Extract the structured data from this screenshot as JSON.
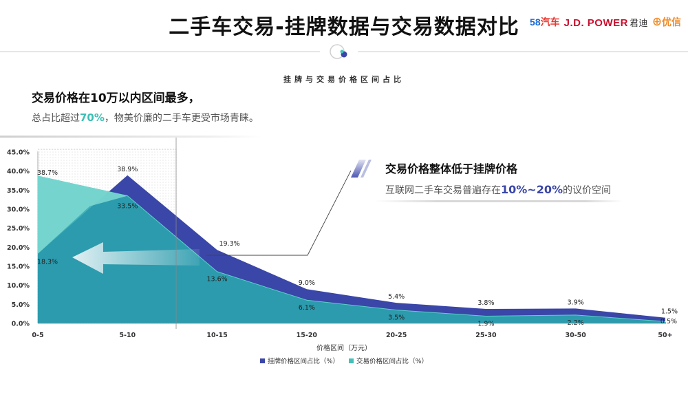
{
  "header": {
    "title": "二手车交易-挂牌数据与交易数据对比",
    "logos": {
      "logo_58": "58",
      "logo_58_text": "汽车",
      "logo_jd": "J.D. POWER",
      "logo_jd_text": "君迪",
      "logo_yx": "优信"
    }
  },
  "subtitle": "挂牌与交易价格区间占比",
  "callout_left": {
    "head": "交易价格在10万以内区间最多，",
    "body_prefix": "总占比超过",
    "body_highlight": "70%",
    "body_suffix": "，物美价廉的二手车更受市场青睐。"
  },
  "callout_right": {
    "head": "交易价格整体低于挂牌价格",
    "body_prefix": "互联网二手车交易普遍存在",
    "body_highlight": "10%~20%",
    "body_suffix": "的议价空间"
  },
  "colors": {
    "listing": "#3a46a8",
    "transaction": "#46bfba",
    "transaction_fill": "#2aa3a8"
  },
  "chart_data": {
    "type": "area",
    "categories": [
      "0-5",
      "5-10",
      "10-15",
      "15-20",
      "20-25",
      "25-30",
      "30-50",
      "50+"
    ],
    "series": [
      {
        "name": "挂牌价格区间占比（%）",
        "values": [
          18.3,
          38.9,
          19.3,
          9.0,
          5.4,
          3.8,
          3.9,
          1.5
        ],
        "labels": [
          "18.3%",
          "38.9%",
          "19.3%",
          "9.0%",
          "5.4%",
          "3.8%",
          "3.9%",
          "1.5%"
        ]
      },
      {
        "name": "交易价格区间占比（%）",
        "values": [
          38.7,
          33.5,
          13.6,
          6.1,
          3.5,
          1.9,
          2.2,
          0.5
        ],
        "labels": [
          "38.7%",
          "33.5%",
          "13.6%",
          "6.1%",
          "3.5%",
          "1.9%",
          "2.2%",
          "0.5%"
        ]
      }
    ],
    "xlabel": "价格区间（万元）",
    "ylabel": "",
    "ylim": [
      0,
      45
    ],
    "yticks": [
      "0.0%",
      "5.0%",
      "10.0%",
      "15.0%",
      "20.0%",
      "25.0%",
      "30.0%",
      "35.0%",
      "40.0%",
      "45.0%"
    ],
    "grid": false,
    "legend_position": "bottom"
  }
}
